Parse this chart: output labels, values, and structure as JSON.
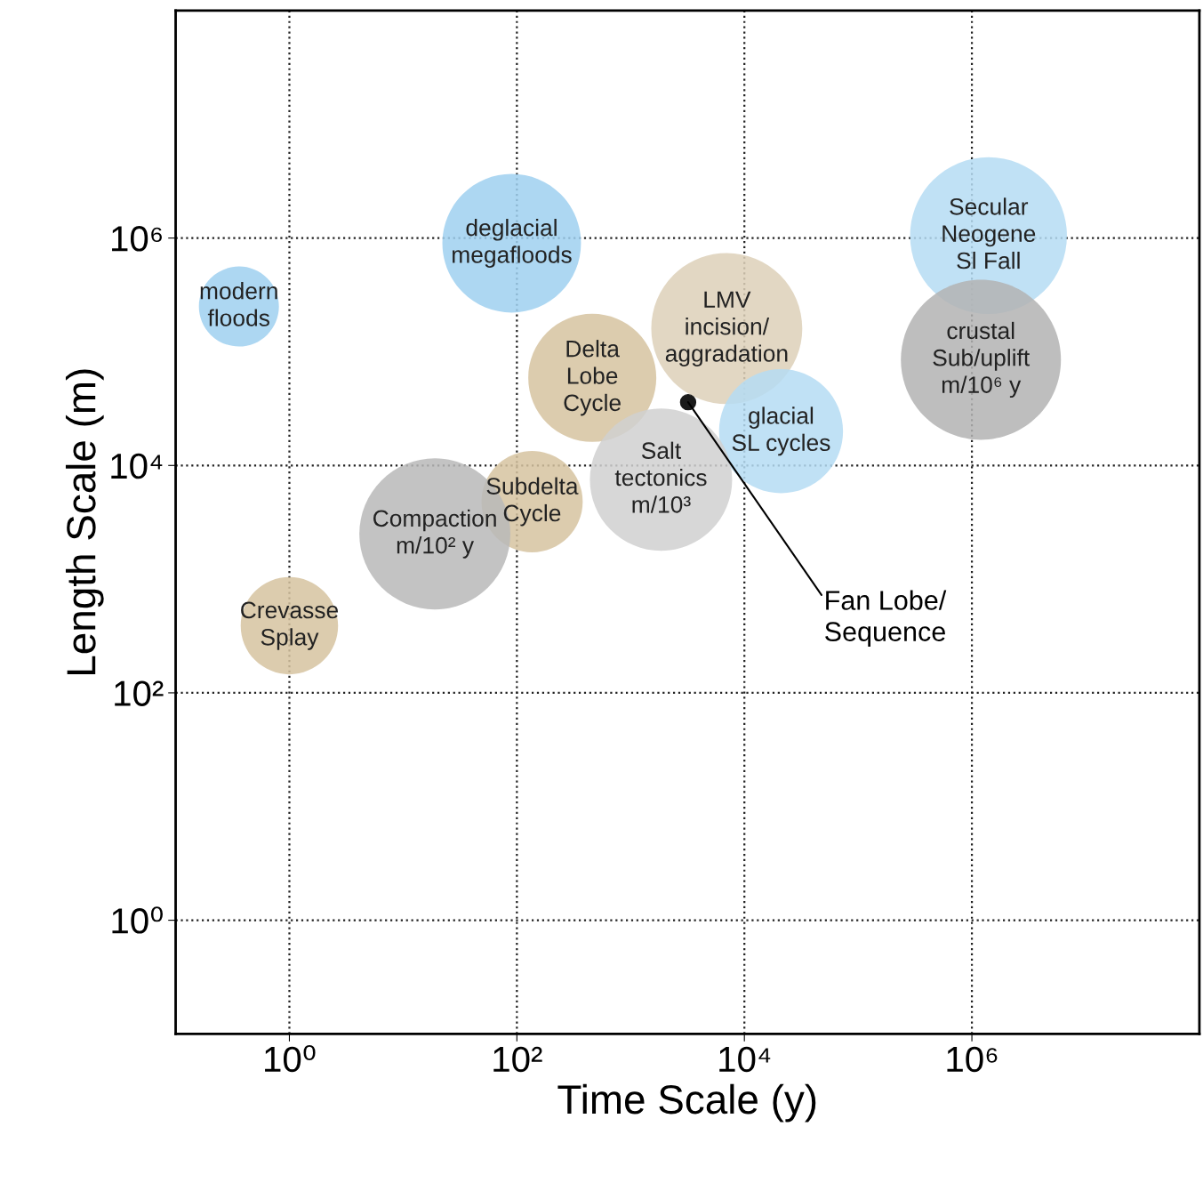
{
  "chart_data": {
    "type": "bubble",
    "xlabel": "Time Scale (y)",
    "ylabel": "Length Scale (m)",
    "log": "xy",
    "grid": true,
    "line_style": "dotted",
    "xlim": [
      0.1,
      100000000
    ],
    "ylim": [
      0.1,
      100000000
    ],
    "xticks": [
      {
        "value": 1,
        "label": "10⁰"
      },
      {
        "value": 100,
        "label": "10²"
      },
      {
        "value": 10000,
        "label": "10⁴"
      },
      {
        "value": 1000000,
        "label": "10⁶"
      }
    ],
    "yticks": [
      {
        "value": 1,
        "label": "10⁰"
      },
      {
        "value": 100,
        "label": "10²"
      },
      {
        "value": 10000,
        "label": "10⁴"
      },
      {
        "value": 1000000,
        "label": "10⁶"
      }
    ],
    "series": [
      {
        "x": [
          0.36,
          90,
          1400000,
          1200000,
          7000,
          460,
          21000,
          1850,
          136,
          19,
          1.0
        ],
        "values": [
          250000,
          900000,
          1050000,
          85000,
          160000,
          59000,
          20000,
          7500,
          4800,
          2500,
          390
        ],
        "sizes": [
          0.25,
          0.75,
          0.96,
          1,
          0.89,
          0.64,
          0.6,
          0.79,
          0.4,
          0.89,
          0.37
        ],
        "colors": [
          "#9fd0f0",
          "#9fd0f0",
          "#b5dcf3",
          "#b3b3b3",
          "#ddd0b8",
          "#d6c3a0",
          "#b5dcf3",
          "#d0d0d0",
          "#d6c3a0",
          "#b8b8b8",
          "#d6c3a0"
        ]
      },
      {
        "type": "scatter",
        "x": [
          3200
        ],
        "values": [
          36000
        ],
        "color": "#1a1a1a"
      }
    ],
    "annotations": [
      {
        "text": "modern\nfloods",
        "x": 0.36,
        "y": 250000
      },
      {
        "text": "deglacial\nmegafloods",
        "x": 90,
        "y": 900000
      },
      {
        "text": "Secular\nNeogene\nSl Fall",
        "x": 1400000,
        "y": 1050000
      },
      {
        "text": "crustal\nSub/uplift\nm/10⁶ y",
        "x": 1200000,
        "y": 85000
      },
      {
        "text": "LMV\nincision/\naggradation",
        "x": 7000,
        "y": 160000
      },
      {
        "text": "Delta\nLobe\nCycle",
        "x": 460,
        "y": 59000
      },
      {
        "text": "glacial\nSL cycles",
        "x": 21000,
        "y": 20000
      },
      {
        "text": "Salt\ntectonics\nm/10³",
        "x": 1850,
        "y": 7500
      },
      {
        "text": "Subdelta\nCycle",
        "x": 136,
        "y": 4800
      },
      {
        "text": "Compaction\nm/10² y",
        "x": 19,
        "y": 2500
      },
      {
        "text": "Crevasse\nSplay",
        "x": 1.0,
        "y": 390
      },
      {
        "text": "Fan Lobe/\nSequence",
        "x": 3200,
        "y": 36000
      }
    ]
  }
}
